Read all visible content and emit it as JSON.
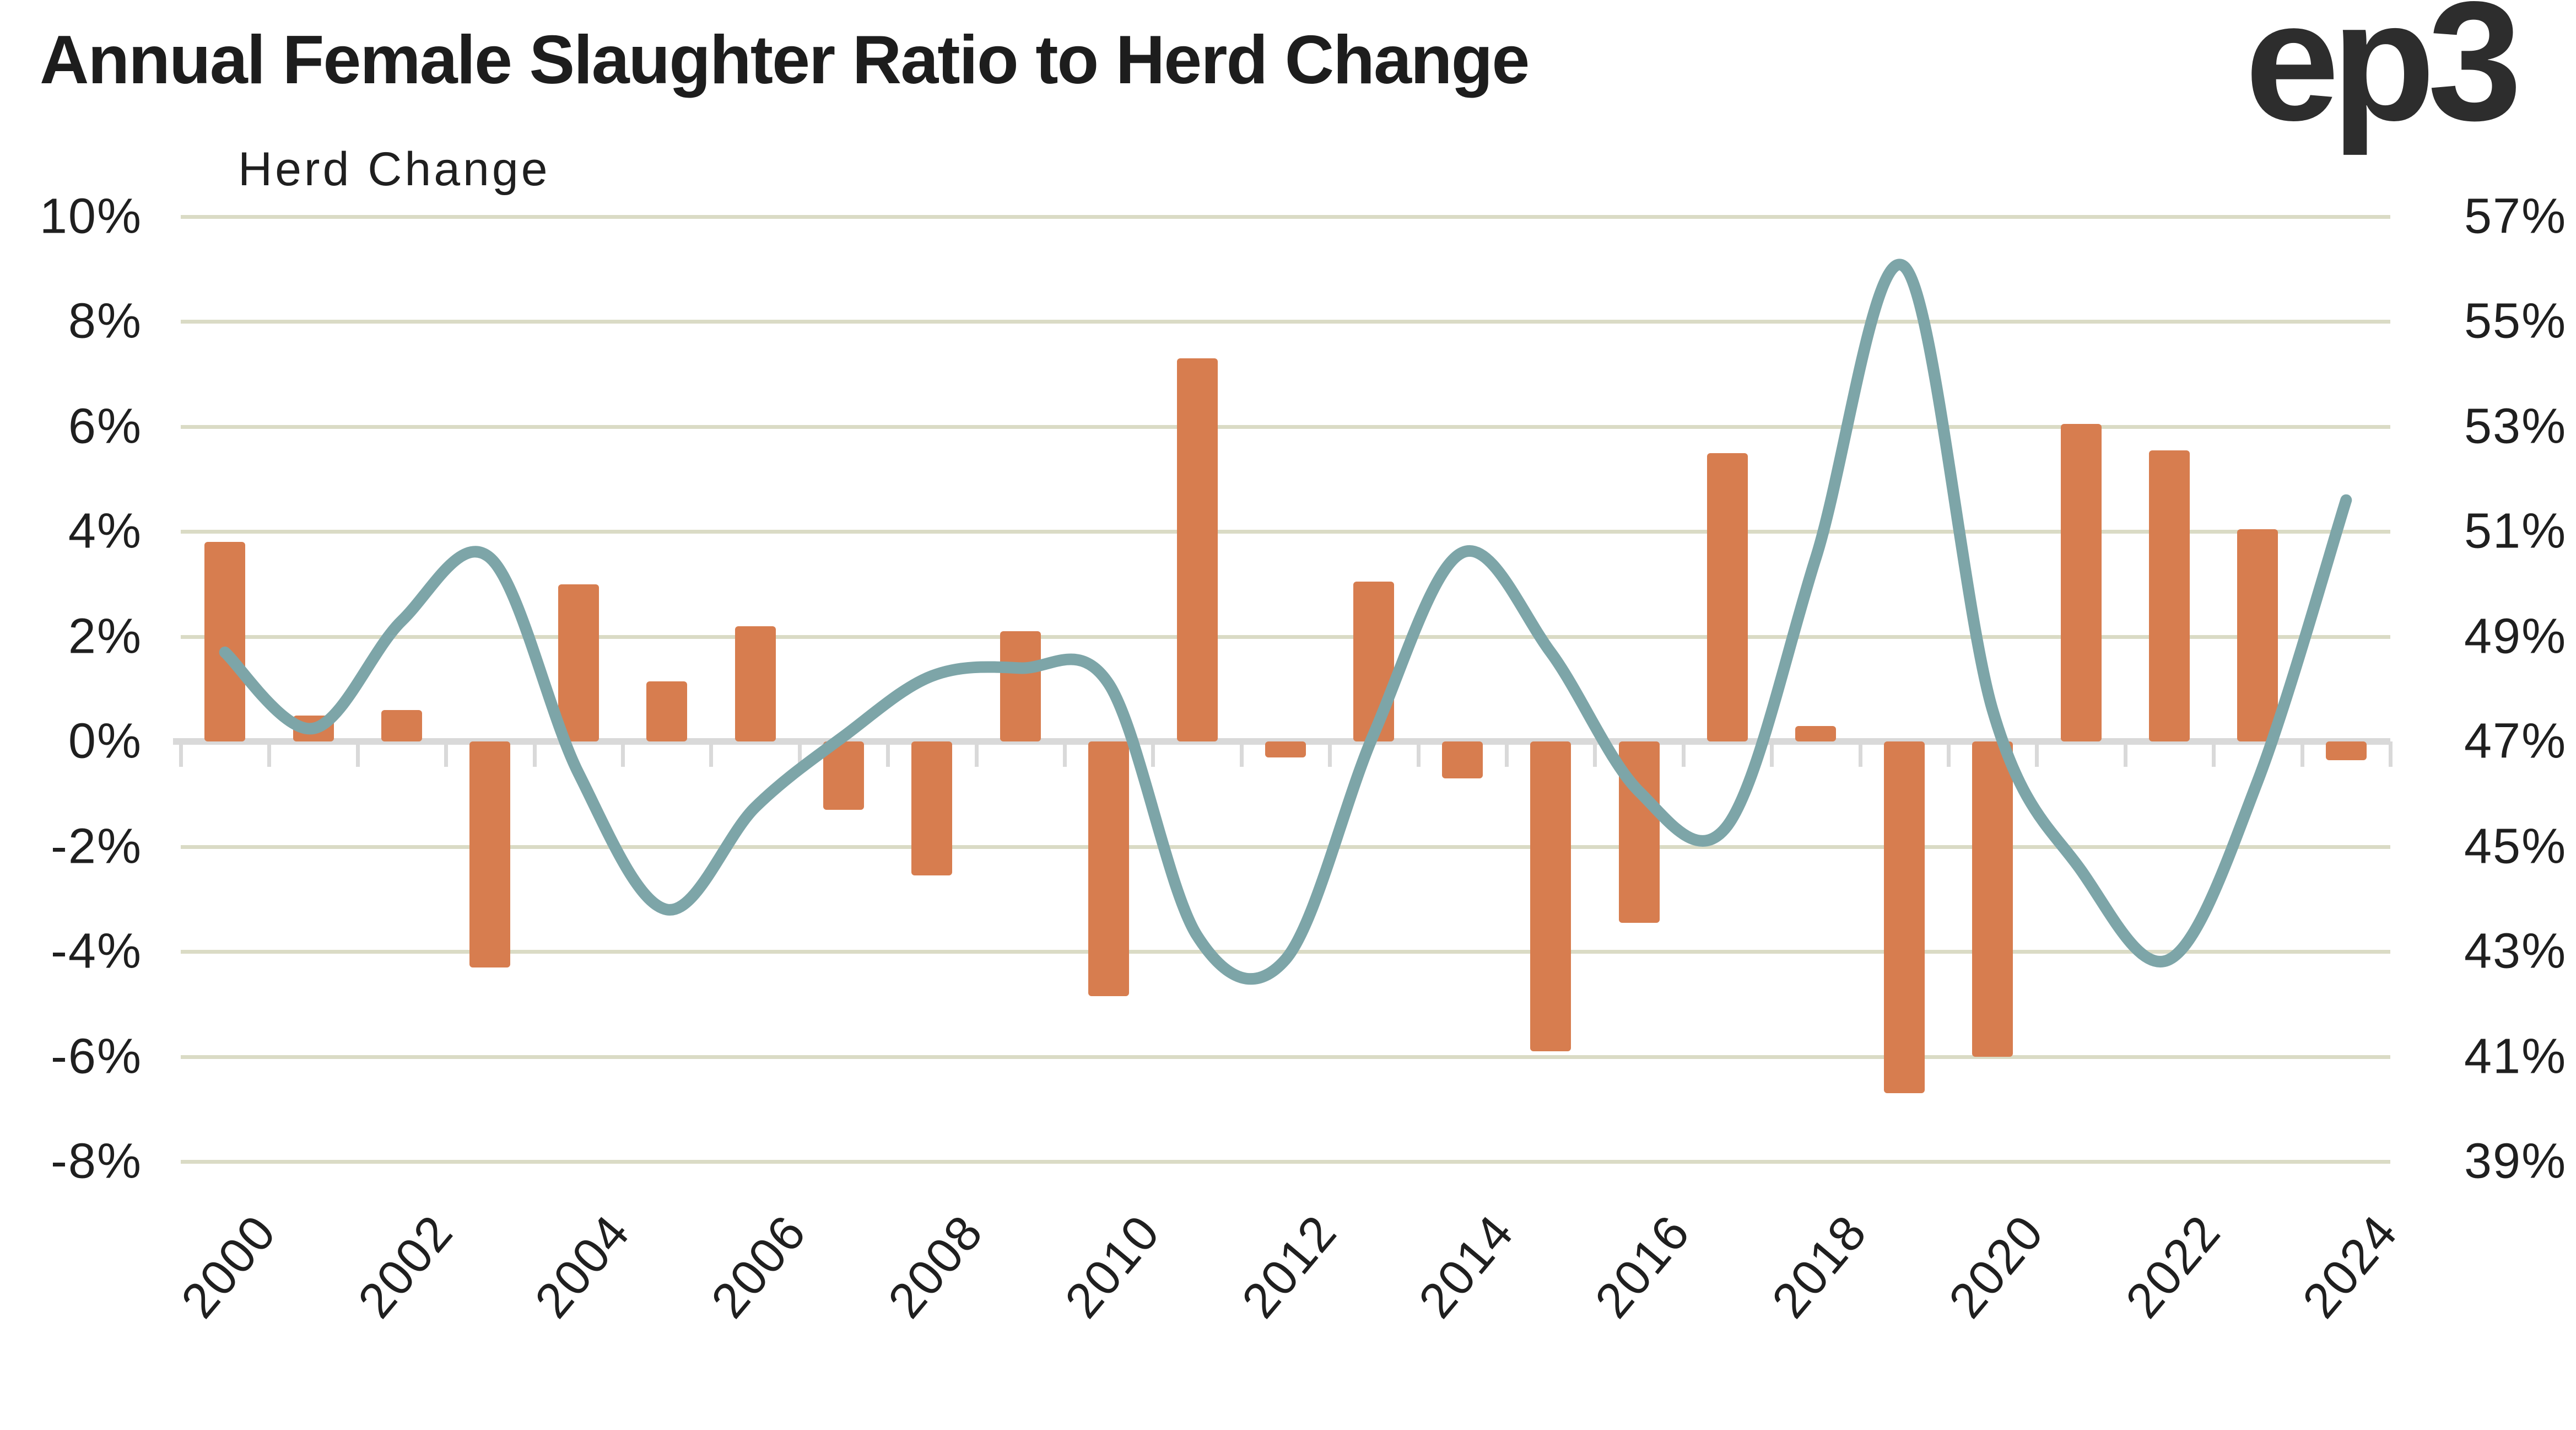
{
  "header": {
    "title": "Annual Female Slaughter Ratio to Herd Change",
    "logo": "ep3"
  },
  "chart_data": {
    "type": "bar",
    "title": "Annual Female Slaughter Ratio to Herd Change",
    "left_axis_title": "Herd Change",
    "left_axis_tick_labels": [
      "10%",
      "8%",
      "6%",
      "4%",
      "2%",
      "0%",
      "-2%",
      "-4%",
      "-6%",
      "-8%"
    ],
    "right_axis_tick_labels": [
      "57%",
      "55%",
      "53%",
      "51%",
      "49%",
      "47%",
      "45%",
      "43%",
      "41%",
      "39%"
    ],
    "left_axis_range": [
      -8,
      10
    ],
    "right_axis_range": [
      39,
      57
    ],
    "grid": true,
    "legend_position": "none",
    "categories": [
      2000,
      2001,
      2002,
      2003,
      2004,
      2005,
      2006,
      2007,
      2008,
      2009,
      2010,
      2011,
      2012,
      2013,
      2014,
      2015,
      2016,
      2017,
      2018,
      2019,
      2020,
      2021,
      2022,
      2023,
      2024
    ],
    "x_tick_labels": [
      "2000",
      "2002",
      "2004",
      "2006",
      "2008",
      "2010",
      "2012",
      "2014",
      "2016",
      "2018",
      "2020",
      "2022",
      "2024"
    ],
    "series": [
      {
        "name": "Herd Change",
        "type": "bar",
        "axis": "left",
        "color": "#d77d4f",
        "values": [
          3.8,
          0.5,
          0.6,
          -4.3,
          3.0,
          1.15,
          2.2,
          -1.3,
          -2.55,
          2.1,
          -4.85,
          7.3,
          -0.3,
          3.05,
          -0.7,
          -5.9,
          -3.45,
          5.5,
          0.3,
          -6.7,
          -6.0,
          6.05,
          5.55,
          4.05,
          -0.35
        ]
      },
      {
        "name": "Female Slaughter Ratio",
        "type": "line",
        "axis": "right",
        "color": "#7da5a8",
        "values": [
          48.7,
          47.25,
          49.3,
          50.5,
          46.4,
          43.8,
          45.75,
          47.1,
          48.25,
          48.4,
          48.1,
          43.3,
          42.85,
          47.15,
          50.6,
          48.7,
          46.05,
          45.4,
          50.5,
          56.05,
          47.6,
          44.55,
          42.85,
          46.25,
          51.6
        ]
      }
    ]
  },
  "colors": {
    "bar": "#d77d4f",
    "line": "#7da5a8",
    "gridline": "#dadbc5",
    "zero_line": "#d9d9d9",
    "text": "#1f1f1f"
  }
}
